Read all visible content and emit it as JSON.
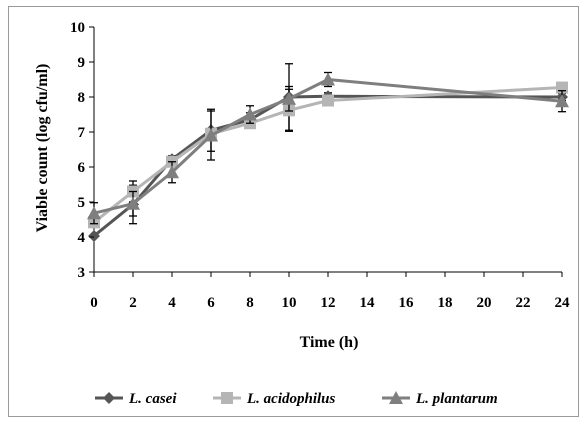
{
  "chart_data": {
    "type": "line",
    "xlabel": "Time (h)",
    "ylabel": "Viable count (log cfu/ml)",
    "xlim": [
      0,
      24
    ],
    "ylim": [
      3,
      10
    ],
    "xticks": [
      "0",
      "2",
      "4",
      "6",
      "8",
      "10",
      "12",
      "14",
      "16",
      "18",
      "20",
      "22",
      "24"
    ],
    "yticks": [
      "3",
      "4",
      "5",
      "6",
      "7",
      "8",
      "9",
      "10"
    ],
    "grid": false,
    "legend_position": "bottom",
    "x": [
      0,
      2,
      4,
      6,
      8,
      10,
      12,
      24
    ],
    "series": [
      {
        "name": "L. casei",
        "marker": "diamond",
        "color": "#555555",
        "values": [
          4.03,
          4.93,
          6.22,
          7.05,
          7.35,
          8.0,
          8.02,
          8.0
        ],
        "errors": [
          0.0,
          0.55,
          0.1,
          0.6,
          0.2,
          0.95,
          0.1,
          0.1
        ]
      },
      {
        "name": "L. acidophilus",
        "marker": "square",
        "color": "#b5b5b5",
        "values": [
          4.42,
          5.3,
          6.15,
          6.95,
          7.25,
          7.62,
          7.9,
          8.27
        ],
        "errors": [
          0.0,
          0.3,
          0.1,
          0.1,
          0.1,
          0.6,
          0.1,
          0.1
        ]
      },
      {
        "name": "L. plantarum",
        "marker": "triangle",
        "color": "#7f7f7f",
        "values": [
          4.68,
          4.95,
          5.85,
          6.9,
          7.5,
          7.95,
          8.5,
          7.88
        ],
        "errors": [
          0.3,
          0.35,
          0.3,
          0.7,
          0.25,
          0.35,
          0.2,
          0.3
        ]
      }
    ]
  }
}
